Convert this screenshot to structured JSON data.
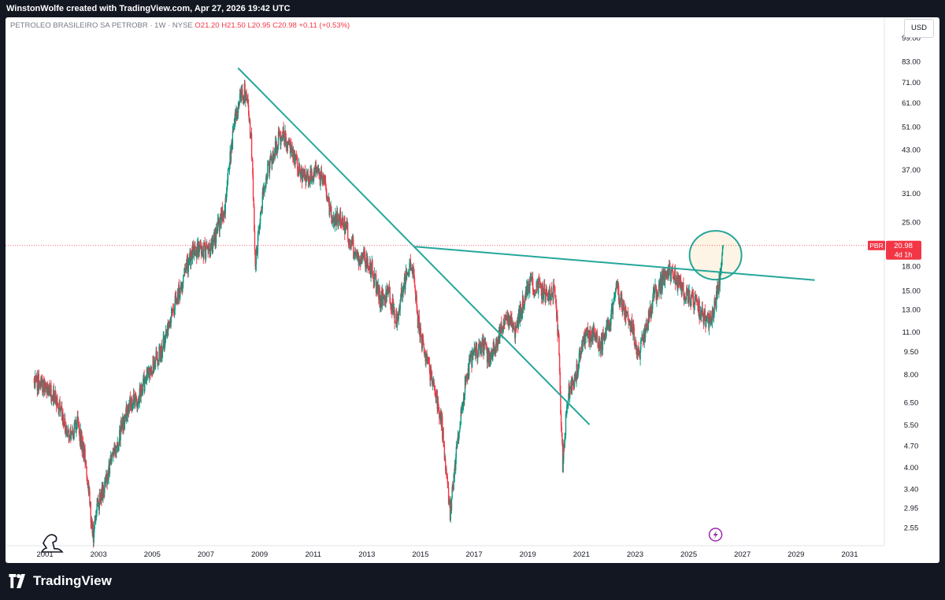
{
  "header": {
    "created_by": "WinstonWolfe created with TradingView.com, Apr 27, 2026 19:42 UTC"
  },
  "legend": {
    "symbol": "PETROLEO BRASILEIRO SA PETROBR · 1W · NYSE",
    "ohlc": "O21.20 H21.50 L20.95 C20.98 +0.11 (+0.53%)"
  },
  "currency": "USD",
  "price_badge": {
    "ticker": "PBR",
    "price": "20.98",
    "countdown": "4d 1h"
  },
  "footer": {
    "brand": "TradingView"
  },
  "colors": {
    "up": "#089981",
    "down": "#f23645",
    "trendline": "#26a69a",
    "highlight_fill": "#fdf0dc",
    "price_line": "#f23645"
  },
  "chart_data": {
    "type": "candlestick",
    "scale": "log",
    "title": "",
    "xlabel": "",
    "ylabel": "",
    "y_axis_ticks": [
      99.0,
      83.0,
      71.0,
      61.0,
      51.0,
      43.0,
      37.0,
      31.0,
      25.0,
      18.0,
      15.0,
      13.0,
      11.0,
      9.5,
      8.0,
      6.5,
      5.5,
      4.7,
      4.0,
      3.4,
      2.95,
      2.55
    ],
    "x_axis_ticks": [
      "2001",
      "2003",
      "2005",
      "2007",
      "2009",
      "2011",
      "2013",
      "2015",
      "2017",
      "2019",
      "2021",
      "2023",
      "2025",
      "2027",
      "2029",
      "2031"
    ],
    "xlim": [
      2000.0,
      2032.0
    ],
    "ylim": [
      2.4,
      99.0
    ],
    "price_path": [
      [
        2000.6,
        7.8
      ],
      [
        2000.9,
        7.3
      ],
      [
        2001.3,
        6.9
      ],
      [
        2001.6,
        6.0
      ],
      [
        2001.9,
        5.0
      ],
      [
        2002.2,
        5.6
      ],
      [
        2002.5,
        4.2
      ],
      [
        2002.8,
        2.4
      ],
      [
        2002.95,
        3.0
      ],
      [
        2003.3,
        3.7
      ],
      [
        2003.7,
        4.9
      ],
      [
        2004.1,
        6.2
      ],
      [
        2004.5,
        6.8
      ],
      [
        2004.9,
        8.3
      ],
      [
        2005.3,
        9.4
      ],
      [
        2005.6,
        11.2
      ],
      [
        2005.9,
        14.0
      ],
      [
        2006.2,
        17.0
      ],
      [
        2006.5,
        20.0
      ],
      [
        2006.8,
        20.5
      ],
      [
        2007.1,
        20.0
      ],
      [
        2007.4,
        23.0
      ],
      [
        2007.7,
        28.0
      ],
      [
        2007.9,
        40.0
      ],
      [
        2008.1,
        55.0
      ],
      [
        2008.3,
        65.0
      ],
      [
        2008.5,
        66.0
      ],
      [
        2008.7,
        45.0
      ],
      [
        2008.85,
        18.0
      ],
      [
        2009.1,
        30.0
      ],
      [
        2009.4,
        40.0
      ],
      [
        2009.7,
        46.0
      ],
      [
        2009.9,
        48.0
      ],
      [
        2010.2,
        42.0
      ],
      [
        2010.5,
        36.0
      ],
      [
        2010.8,
        35.0
      ],
      [
        2011.1,
        37.0
      ],
      [
        2011.4,
        33.0
      ],
      [
        2011.7,
        26.0
      ],
      [
        2012.0,
        26.0
      ],
      [
        2012.3,
        23.0
      ],
      [
        2012.6,
        19.0
      ],
      [
        2012.9,
        19.5
      ],
      [
        2013.2,
        17.5
      ],
      [
        2013.5,
        14.0
      ],
      [
        2013.8,
        15.0
      ],
      [
        2014.1,
        12.0
      ],
      [
        2014.4,
        16.0
      ],
      [
        2014.7,
        18.5
      ],
      [
        2014.9,
        12.0
      ],
      [
        2015.2,
        9.0
      ],
      [
        2015.5,
        7.5
      ],
      [
        2015.8,
        5.5
      ],
      [
        2016.0,
        3.5
      ],
      [
        2016.1,
        2.8
      ],
      [
        2016.4,
        5.0
      ],
      [
        2016.7,
        8.0
      ],
      [
        2017.0,
        9.5
      ],
      [
        2017.3,
        10.0
      ],
      [
        2017.6,
        9.0
      ],
      [
        2017.9,
        10.5
      ],
      [
        2018.2,
        12.5
      ],
      [
        2018.5,
        11.0
      ],
      [
        2018.8,
        13.5
      ],
      [
        2019.1,
        16.0
      ],
      [
        2019.4,
        15.5
      ],
      [
        2019.7,
        14.5
      ],
      [
        2020.0,
        15.0
      ],
      [
        2020.15,
        10.0
      ],
      [
        2020.3,
        4.1
      ],
      [
        2020.5,
        7.0
      ],
      [
        2020.8,
        8.0
      ],
      [
        2021.1,
        10.5
      ],
      [
        2021.4,
        11.0
      ],
      [
        2021.7,
        9.8
      ],
      [
        2022.0,
        11.5
      ],
      [
        2022.3,
        15.0
      ],
      [
        2022.6,
        13.0
      ],
      [
        2022.9,
        11.5
      ],
      [
        2023.1,
        9.0
      ],
      [
        2023.4,
        11.0
      ],
      [
        2023.7,
        14.5
      ],
      [
        2024.0,
        16.0
      ],
      [
        2024.3,
        17.2
      ],
      [
        2024.6,
        16.0
      ],
      [
        2024.9,
        14.5
      ],
      [
        2025.2,
        13.8
      ],
      [
        2025.5,
        12.5
      ],
      [
        2025.8,
        11.8
      ],
      [
        2026.0,
        13.5
      ],
      [
        2026.15,
        16.0
      ],
      [
        2026.3,
        21.0
      ]
    ],
    "last_price": 20.98,
    "annotations": [
      {
        "type": "trendline",
        "from": [
          2008.2,
          79.0
        ],
        "to": [
          2021.3,
          5.5
        ]
      },
      {
        "type": "trendline",
        "from": [
          2014.8,
          20.8
        ],
        "to": [
          2029.7,
          16.2
        ]
      },
      {
        "type": "circle",
        "center": [
          2026.0,
          19.5
        ]
      }
    ]
  }
}
